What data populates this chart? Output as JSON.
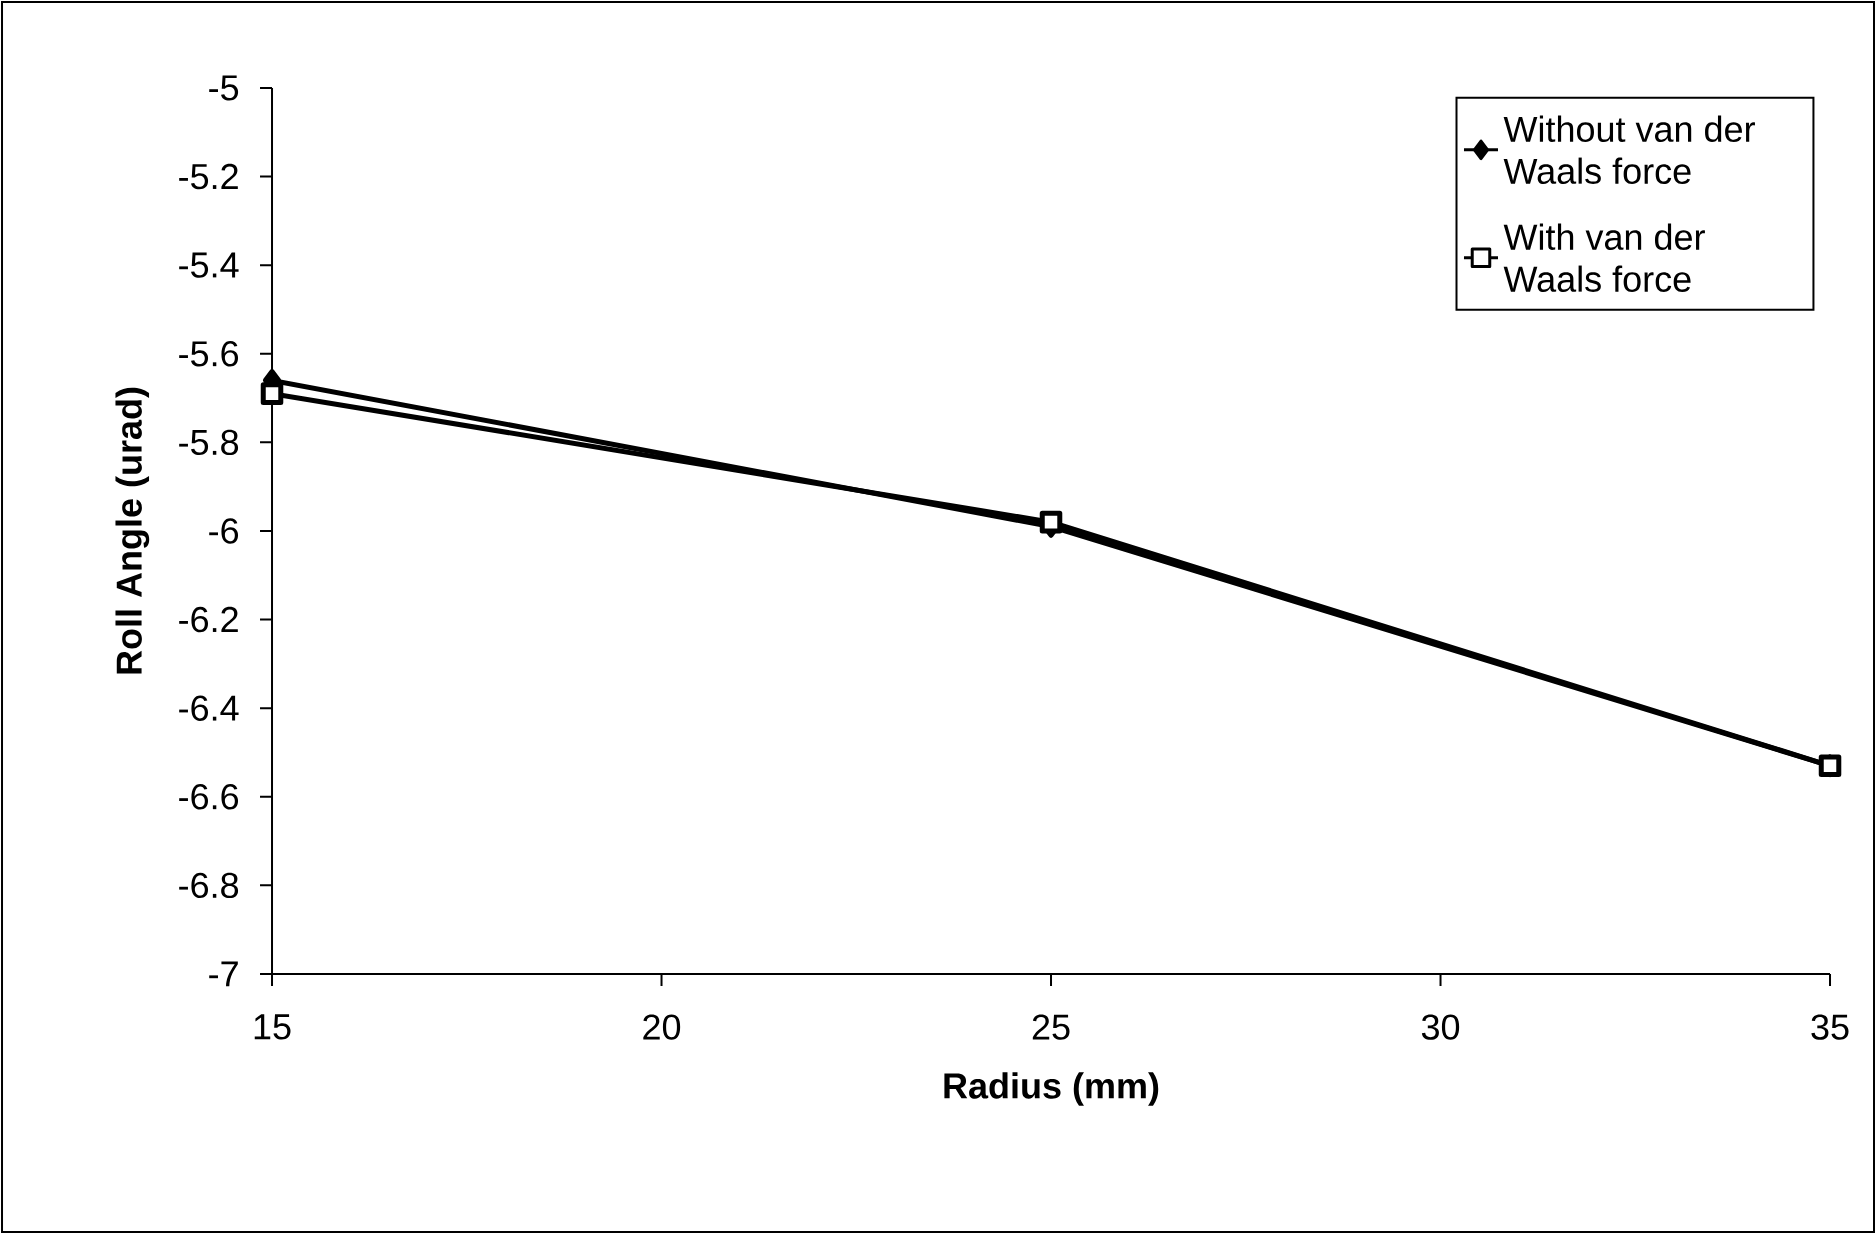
{
  "chart_data": {
    "type": "line",
    "xlabel": "Radius (mm)",
    "ylabel": "Roll Angle (urad)",
    "x": [
      15,
      25,
      35
    ],
    "series": [
      {
        "name": "Without van der Waals force",
        "color": "#000000",
        "marker": "diamond",
        "values": [
          -5.66,
          -5.99,
          -6.53
        ]
      },
      {
        "name": "With van der Waals force",
        "color": "#000000",
        "marker": "square",
        "values": [
          -5.69,
          -5.98,
          -6.53
        ]
      }
    ],
    "xlim": [
      15,
      35
    ],
    "xticks": [
      15,
      20,
      25,
      30,
      35
    ],
    "ylim": [
      -7,
      -5
    ],
    "yticks": [
      -7,
      -6.8,
      -6.6,
      -6.4,
      -6.2,
      -6,
      -5.8,
      -5.6,
      -5.4,
      -5.2,
      -5
    ],
    "grid": false,
    "legend": "top right",
    "line_style": "solid"
  }
}
